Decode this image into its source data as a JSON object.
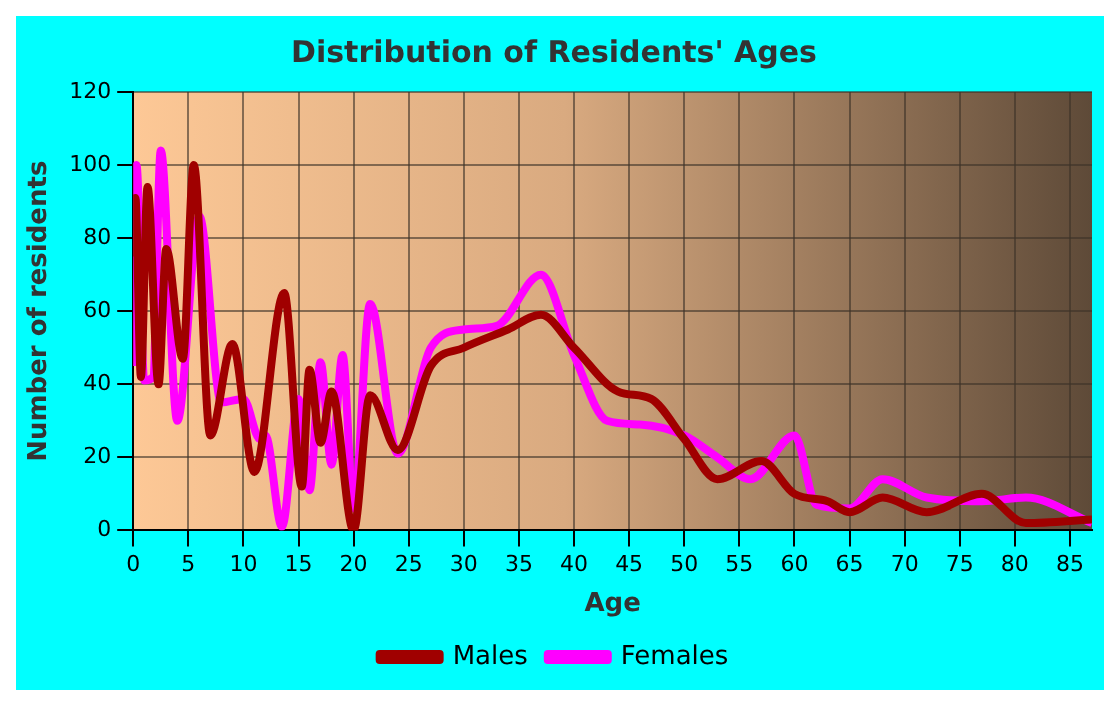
{
  "chart_data": {
    "type": "line",
    "title": "Distribution of Residents' Ages",
    "xlabel": "Age",
    "ylabel": "Number of residents",
    "xlim": [
      0,
      87
    ],
    "xticks": [
      0,
      5,
      10,
      15,
      20,
      25,
      30,
      35,
      40,
      45,
      50,
      55,
      60,
      65,
      70,
      75,
      80,
      85
    ],
    "ylim": [
      0,
      120
    ],
    "yticks": [
      0,
      20,
      40,
      60,
      80,
      100,
      120
    ],
    "grid": true,
    "legend": "bottom",
    "marker": "none",
    "series": [
      {
        "name": "Males",
        "color": "#a00000",
        "x": [
          0,
          0.2,
          0.7,
          1.3,
          2.3,
          3,
          4.5,
          5.5,
          7,
          9,
          11,
          13.7,
          15.3,
          16,
          17,
          18,
          20,
          21.5,
          24,
          27,
          30,
          34,
          37,
          40,
          44,
          47,
          50,
          53,
          57,
          60,
          63,
          65,
          68,
          72,
          77,
          81,
          87
        ],
        "values": [
          75,
          91,
          42,
          94,
          40,
          77,
          47,
          100,
          26,
          51,
          16,
          65,
          12,
          44,
          24,
          38,
          0,
          37,
          22,
          45,
          50,
          55,
          59,
          50,
          38,
          36,
          25,
          14,
          19,
          10,
          8,
          5,
          9,
          5,
          10,
          2,
          3
        ]
      },
      {
        "name": "Females",
        "color": "#ff00ff",
        "x": [
          0,
          0.3,
          1,
          1.8,
          2.5,
          4,
          6,
          8,
          10,
          11.5,
          12,
          13.5,
          15,
          16,
          17,
          18,
          19,
          20,
          21.5,
          24,
          27,
          30,
          33,
          37,
          40,
          43,
          46,
          50,
          53,
          56,
          60,
          62,
          65,
          68,
          72,
          77,
          81,
          87
        ],
        "values": [
          45,
          100,
          41,
          42,
          104,
          30,
          86,
          35,
          36,
          25,
          26,
          1,
          36,
          11,
          46,
          18,
          48,
          6,
          62,
          21,
          50,
          55,
          56,
          70,
          48,
          30,
          29,
          26,
          20,
          14,
          26,
          7,
          6,
          14,
          9,
          8,
          9,
          2
        ]
      }
    ]
  }
}
